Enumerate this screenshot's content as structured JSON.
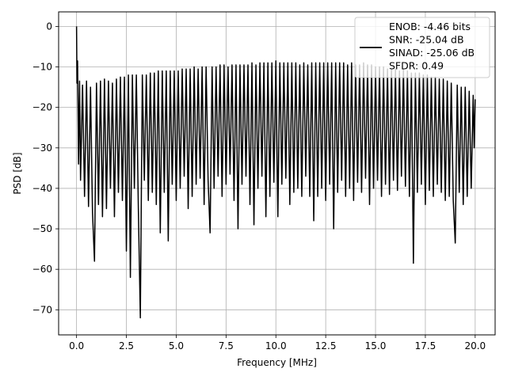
{
  "chart_data": {
    "type": "line",
    "xlabel": "Frequency [MHz]",
    "ylabel": "PSD [dB]",
    "xlim": [
      -0.9,
      21.0
    ],
    "ylim": [
      -76.2,
      3.6
    ],
    "xticks": [
      0.0,
      2.5,
      5.0,
      7.5,
      10.0,
      12.5,
      15.0,
      17.5,
      20.0
    ],
    "xtick_labels": [
      "0.0",
      "2.5",
      "5.0",
      "7.5",
      "10.0",
      "12.5",
      "15.0",
      "17.5",
      "20.0"
    ],
    "yticks": [
      0,
      -10,
      -20,
      -30,
      -40,
      -50,
      -60,
      -70
    ],
    "ytick_labels": [
      "0",
      "−10",
      "−20",
      "−30",
      "−40",
      "−50",
      "−60",
      "−70"
    ],
    "grid": true,
    "legend_position": "top-right",
    "series": [
      {
        "name": "ENOB: -4.46 bits\nSNR: -25.04 dB\nSINAD: -25.06 dB\nSFDR: 0.49",
        "color": "#000000",
        "points": [
          [
            0.0,
            0.0
          ],
          [
            0.02,
            -14.0
          ],
          [
            0.05,
            -8.5
          ],
          [
            0.1,
            -34.0
          ],
          [
            0.15,
            -13.5
          ],
          [
            0.2,
            -38.0
          ],
          [
            0.3,
            -14.5
          ],
          [
            0.4,
            -42.0
          ],
          [
            0.5,
            -13.5
          ],
          [
            0.6,
            -44.5
          ],
          [
            0.7,
            -15.0
          ],
          [
            0.8,
            -46.0
          ],
          [
            0.9,
            -58.0
          ],
          [
            1.0,
            -14.0
          ],
          [
            1.1,
            -44.0
          ],
          [
            1.2,
            -13.5
          ],
          [
            1.3,
            -47.0
          ],
          [
            1.4,
            -13.0
          ],
          [
            1.5,
            -45.0
          ],
          [
            1.6,
            -13.5
          ],
          [
            1.7,
            -40.0
          ],
          [
            1.8,
            -14.0
          ],
          [
            1.9,
            -47.0
          ],
          [
            2.0,
            -13.0
          ],
          [
            2.1,
            -41.0
          ],
          [
            2.2,
            -12.5
          ],
          [
            2.3,
            -43.0
          ],
          [
            2.4,
            -12.5
          ],
          [
            2.5,
            -55.5
          ],
          [
            2.6,
            -12.0
          ],
          [
            2.7,
            -62.0
          ],
          [
            2.8,
            -12.0
          ],
          [
            2.9,
            -40.0
          ],
          [
            3.0,
            -12.0
          ],
          [
            3.1,
            -45.0
          ],
          [
            3.2,
            -72.0
          ],
          [
            3.3,
            -12.0
          ],
          [
            3.4,
            -38.0
          ],
          [
            3.5,
            -12.0
          ],
          [
            3.6,
            -43.0
          ],
          [
            3.7,
            -11.5
          ],
          [
            3.8,
            -41.0
          ],
          [
            3.9,
            -11.5
          ],
          [
            4.0,
            -44.0
          ],
          [
            4.1,
            -11.0
          ],
          [
            4.2,
            -51.0
          ],
          [
            4.3,
            -11.0
          ],
          [
            4.4,
            -41.0
          ],
          [
            4.5,
            -11.0
          ],
          [
            4.6,
            -53.0
          ],
          [
            4.7,
            -11.0
          ],
          [
            4.8,
            -39.0
          ],
          [
            4.9,
            -11.0
          ],
          [
            5.0,
            -43.0
          ],
          [
            5.1,
            -11.0
          ],
          [
            5.2,
            -40.0
          ],
          [
            5.3,
            -10.5
          ],
          [
            5.4,
            -37.0
          ],
          [
            5.5,
            -10.5
          ],
          [
            5.6,
            -45.0
          ],
          [
            5.7,
            -10.5
          ],
          [
            5.8,
            -42.0
          ],
          [
            5.9,
            -10.0
          ],
          [
            6.0,
            -39.0
          ],
          [
            6.1,
            -10.5
          ],
          [
            6.2,
            -37.5
          ],
          [
            6.3,
            -10.0
          ],
          [
            6.4,
            -44.0
          ],
          [
            6.5,
            -10.0
          ],
          [
            6.6,
            -38.0
          ],
          [
            6.7,
            -51.0
          ],
          [
            6.8,
            -10.0
          ],
          [
            6.9,
            -40.0
          ],
          [
            7.0,
            -10.0
          ],
          [
            7.1,
            -37.0
          ],
          [
            7.2,
            -9.5
          ],
          [
            7.3,
            -42.0
          ],
          [
            7.4,
            -9.5
          ],
          [
            7.5,
            -39.0
          ],
          [
            7.6,
            -10.0
          ],
          [
            7.7,
            -36.5
          ],
          [
            7.8,
            -9.5
          ],
          [
            7.9,
            -43.0
          ],
          [
            8.0,
            -9.5
          ],
          [
            8.1,
            -50.0
          ],
          [
            8.2,
            -9.5
          ],
          [
            8.3,
            -39.0
          ],
          [
            8.4,
            -9.5
          ],
          [
            8.5,
            -37.0
          ],
          [
            8.6,
            -9.5
          ],
          [
            8.7,
            -44.0
          ],
          [
            8.8,
            -9.0
          ],
          [
            8.9,
            -49.0
          ],
          [
            9.0,
            -9.5
          ],
          [
            9.1,
            -40.0
          ],
          [
            9.2,
            -9.0
          ],
          [
            9.3,
            -37.0
          ],
          [
            9.4,
            -9.0
          ],
          [
            9.5,
            -47.0
          ],
          [
            9.6,
            -9.0
          ],
          [
            9.7,
            -42.0
          ],
          [
            9.8,
            -9.0
          ],
          [
            9.9,
            -38.5
          ],
          [
            10.0,
            -8.5
          ],
          [
            10.1,
            -47.0
          ],
          [
            10.2,
            -9.0
          ],
          [
            10.3,
            -39.0
          ],
          [
            10.4,
            -9.0
          ],
          [
            10.5,
            -37.5
          ],
          [
            10.6,
            -9.0
          ],
          [
            10.7,
            -44.0
          ],
          [
            10.8,
            -9.0
          ],
          [
            10.9,
            -41.0
          ],
          [
            11.0,
            -9.0
          ],
          [
            11.1,
            -40.0
          ],
          [
            11.2,
            -9.5
          ],
          [
            11.3,
            -42.0
          ],
          [
            11.4,
            -9.0
          ],
          [
            11.5,
            -37.0
          ],
          [
            11.6,
            -9.5
          ],
          [
            11.7,
            -42.0
          ],
          [
            11.8,
            -9.0
          ],
          [
            11.9,
            -48.0
          ],
          [
            12.0,
            -9.0
          ],
          [
            12.1,
            -42.0
          ],
          [
            12.2,
            -9.0
          ],
          [
            12.3,
            -40.0
          ],
          [
            12.4,
            -9.0
          ],
          [
            12.5,
            -43.0
          ],
          [
            12.6,
            -9.0
          ],
          [
            12.7,
            -39.0
          ],
          [
            12.8,
            -9.0
          ],
          [
            12.9,
            -50.0
          ],
          [
            13.0,
            -9.0
          ],
          [
            13.1,
            -41.0
          ],
          [
            13.2,
            -9.0
          ],
          [
            13.3,
            -38.0
          ],
          [
            13.4,
            -9.0
          ],
          [
            13.5,
            -42.0
          ],
          [
            13.6,
            -9.5
          ],
          [
            13.7,
            -40.0
          ],
          [
            13.8,
            -9.0
          ],
          [
            13.9,
            -43.0
          ],
          [
            14.0,
            -9.5
          ],
          [
            14.1,
            -38.5
          ],
          [
            14.2,
            -9.5
          ],
          [
            14.3,
            -41.0
          ],
          [
            14.4,
            -9.0
          ],
          [
            14.5,
            -37.5
          ],
          [
            14.6,
            -9.5
          ],
          [
            14.7,
            -44.0
          ],
          [
            14.8,
            -9.5
          ],
          [
            14.9,
            -40.0
          ],
          [
            15.0,
            -10.0
          ],
          [
            15.1,
            -38.0
          ],
          [
            15.2,
            -10.0
          ],
          [
            15.3,
            -42.0
          ],
          [
            15.4,
            -10.0
          ],
          [
            15.5,
            -39.0
          ],
          [
            15.6,
            -10.5
          ],
          [
            15.7,
            -41.5
          ],
          [
            15.8,
            -10.5
          ],
          [
            15.9,
            -38.0
          ],
          [
            16.0,
            -10.5
          ],
          [
            16.1,
            -40.5
          ],
          [
            16.2,
            -11.0
          ],
          [
            16.3,
            -37.0
          ],
          [
            16.4,
            -10.5
          ],
          [
            16.5,
            -39.5
          ],
          [
            16.6,
            -11.0
          ],
          [
            16.7,
            -42.0
          ],
          [
            16.8,
            -11.5
          ],
          [
            16.9,
            -58.5
          ],
          [
            17.0,
            -11.5
          ],
          [
            17.1,
            -41.0
          ],
          [
            17.2,
            -11.5
          ],
          [
            17.3,
            -39.0
          ],
          [
            17.4,
            -12.0
          ],
          [
            17.5,
            -44.0
          ],
          [
            17.6,
            -12.0
          ],
          [
            17.7,
            -40.5
          ],
          [
            17.8,
            -12.5
          ],
          [
            17.9,
            -42.0
          ],
          [
            18.0,
            -12.5
          ],
          [
            18.1,
            -39.0
          ],
          [
            18.2,
            -13.0
          ],
          [
            18.3,
            -41.0
          ],
          [
            18.4,
            -13.0
          ],
          [
            18.5,
            -43.0
          ],
          [
            18.6,
            -13.5
          ],
          [
            18.7,
            -42.0
          ],
          [
            18.8,
            -14.0
          ],
          [
            18.9,
            -43.0
          ],
          [
            19.0,
            -53.5
          ],
          [
            19.1,
            -14.5
          ],
          [
            19.2,
            -41.0
          ],
          [
            19.3,
            -15.0
          ],
          [
            19.4,
            -44.0
          ],
          [
            19.5,
            -15.0
          ],
          [
            19.6,
            -42.0
          ],
          [
            19.7,
            -16.0
          ],
          [
            19.8,
            -40.0
          ],
          [
            19.9,
            -17.0
          ],
          [
            19.95,
            -30.0
          ],
          [
            20.0,
            -18.0
          ]
        ]
      }
    ]
  }
}
